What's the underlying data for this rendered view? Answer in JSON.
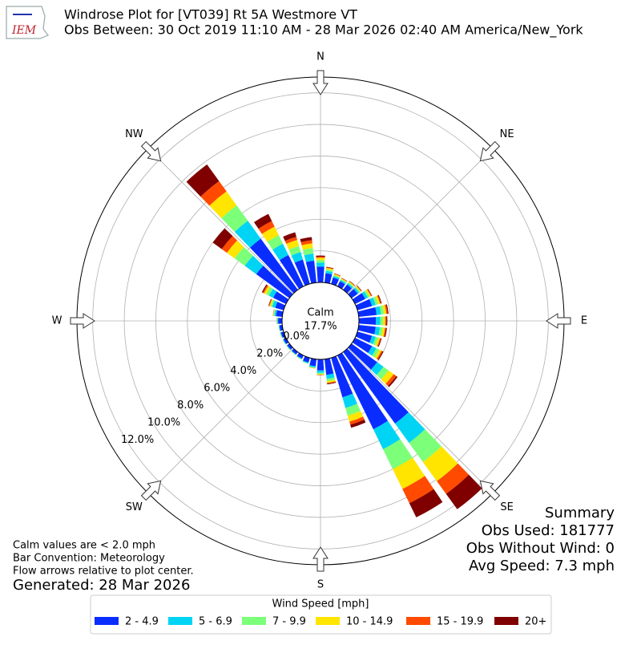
{
  "chart_data": {
    "type": "windrose",
    "title": "Windrose Plot for [VT039] Rt 5A Westmore  VT",
    "subtitle": "Obs Between: 30 Oct 2019 11:10 AM - 28 Mar 2026 02:40 AM America/New_York",
    "logo": "IEM",
    "compass": [
      "N",
      "NE",
      "E",
      "SE",
      "S",
      "SW",
      "W",
      "NW"
    ],
    "calm_label": "Calm",
    "calm_value": "17.7%",
    "ylim": [
      0,
      13
    ],
    "yticks": [
      {
        "value": 0,
        "label": "0.0%"
      },
      {
        "value": 2,
        "label": "2.0%"
      },
      {
        "value": 4,
        "label": "4.0%"
      },
      {
        "value": 6,
        "label": "6.0%"
      },
      {
        "value": 8,
        "label": "8.0%"
      },
      {
        "value": 10,
        "label": "10.0%"
      },
      {
        "value": 12,
        "label": "12.0%"
      }
    ],
    "legend_title": "Wind Speed [mph]",
    "series": [
      {
        "name": "2 - 4.9",
        "color": "#0a2dff",
        "values": [
          1.0,
          0.6,
          0.42,
          0.36,
          0.42,
          0.48,
          0.72,
          0.96,
          1.14,
          1.08,
          1.08,
          0.96,
          1.2,
          2.0,
          5.6,
          5.2,
          2.6,
          1.0,
          0.7,
          0.45,
          0.3,
          0.22,
          0.18,
          0.18,
          0.18,
          0.18,
          0.18,
          0.25,
          0.4,
          0.55,
          0.9,
          2.6,
          4.0,
          2.2,
          1.6,
          1.4
        ]
      },
      {
        "name": "5 - 6.9",
        "color": "#00d4f4",
        "values": [
          0.25,
          0.15,
          0.1,
          0.09,
          0.1,
          0.12,
          0.18,
          0.24,
          0.28,
          0.27,
          0.27,
          0.24,
          0.3,
          0.5,
          1.5,
          1.4,
          0.7,
          0.25,
          0.15,
          0.08,
          0.06,
          0.05,
          0.04,
          0.04,
          0.04,
          0.04,
          0.04,
          0.05,
          0.1,
          0.2,
          0.3,
          0.9,
          1.4,
          0.8,
          0.5,
          0.45
        ]
      },
      {
        "name": "7 - 9.9",
        "color": "#7cff79",
        "values": [
          0.17,
          0.1,
          0.07,
          0.06,
          0.07,
          0.08,
          0.12,
          0.16,
          0.19,
          0.18,
          0.18,
          0.16,
          0.2,
          0.4,
          1.5,
          1.4,
          0.5,
          0.15,
          0.08,
          0.04,
          0.03,
          0.02,
          0.02,
          0.02,
          0.02,
          0.02,
          0.02,
          0.03,
          0.05,
          0.1,
          0.2,
          0.8,
          1.2,
          0.6,
          0.4,
          0.35
        ]
      },
      {
        "name": "10 - 14.9",
        "color": "#ffe500",
        "values": [
          0.14,
          0.08,
          0.06,
          0.05,
          0.06,
          0.06,
          0.1,
          0.13,
          0.15,
          0.14,
          0.14,
          0.13,
          0.16,
          0.4,
          1.5,
          1.4,
          0.4,
          0.1,
          0.04,
          0.02,
          0.01,
          0.01,
          0.01,
          0.01,
          0.01,
          0.01,
          0.01,
          0.01,
          0.03,
          0.08,
          0.15,
          0.6,
          1.1,
          0.6,
          0.4,
          0.3
        ]
      },
      {
        "name": "15 - 19.9",
        "color": "#ff4a00",
        "values": [
          0.07,
          0.04,
          0.03,
          0.02,
          0.03,
          0.03,
          0.05,
          0.06,
          0.08,
          0.07,
          0.07,
          0.06,
          0.08,
          0.2,
          1.0,
          1.0,
          0.2,
          0.05,
          0.02,
          0.01,
          0,
          0,
          0,
          0,
          0,
          0,
          0,
          0.01,
          0.01,
          0.04,
          0.08,
          0.4,
          0.8,
          0.4,
          0.2,
          0.2
        ]
      },
      {
        "name": "20+",
        "color": "#800000",
        "values": [
          0.07,
          0.03,
          0.02,
          0.02,
          0.02,
          0.03,
          0.03,
          0.05,
          0.06,
          0.06,
          0.06,
          0.05,
          0.06,
          0.1,
          1.2,
          1.0,
          0.2,
          0.05,
          0.01,
          0,
          0,
          0,
          0,
          0,
          0,
          0,
          0,
          0,
          0.01,
          0.03,
          0.07,
          0.7,
          1.3,
          0.5,
          0.3,
          0.2
        ]
      }
    ],
    "summary": [
      "Summary",
      "Obs Used: 181777",
      "Obs Without Wind: 0",
      "Avg Speed: 7.3 mph"
    ],
    "notes": [
      "Calm values are < 2.0 mph",
      "Bar Convention: Meteorology",
      "Flow arrows relative to plot center."
    ],
    "generated": "Generated: 28 Mar 2026"
  }
}
